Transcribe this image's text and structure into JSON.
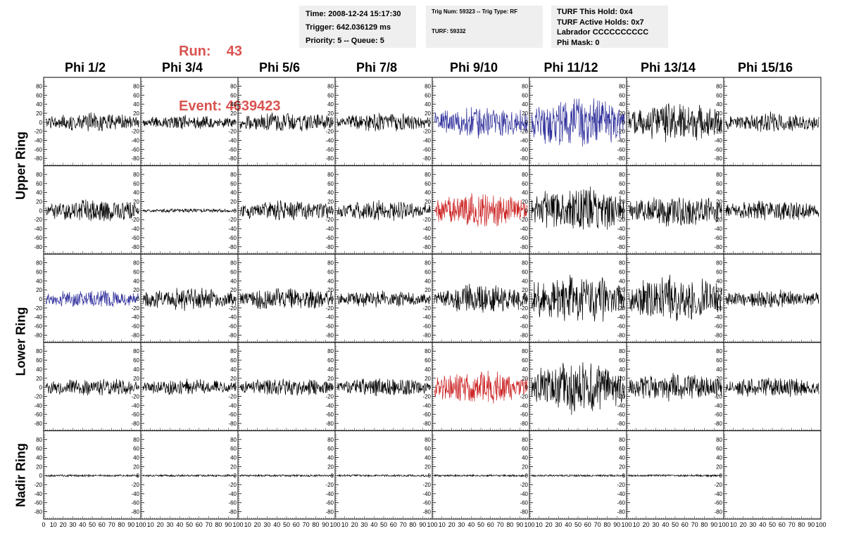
{
  "header": {
    "run_label": "Run:",
    "run_value": "43",
    "event_label": "Event:",
    "event_value": "4639423"
  },
  "info_box_1": {
    "time": "Time: 2008-12-24 15:17:30",
    "trigger": "Trigger: 642.036129 ms",
    "priority": "Priority: 5 -- Queue: 5"
  },
  "info_box_2": {
    "trig": "Trig Num: 59323 -- Trig Type: RF",
    "turf": "TURF: 59332"
  },
  "info_box_3": {
    "this_hold": "TURF This Hold: 0x4",
    "active_holds": "TURF Active Holds: 0x7",
    "labrador": "Labrador CCCCCCCCCC",
    "phi_mask": "Phi Mask: 0"
  },
  "columns": [
    "Phi 1/2",
    "Phi 3/4",
    "Phi 5/6",
    "Phi 7/8",
    "Phi 9/10",
    "Phi 11/12",
    "Phi 13/14",
    "Phi 15/16"
  ],
  "ring_labels": {
    "upper": "Upper Ring",
    "lower": "Lower Ring",
    "nadir": "Nadir Ring"
  },
  "colors": {
    "normal": "#000000",
    "triggered_blue": "#2b2b9a",
    "triggered_red": "#cc2222",
    "header_red": "#d9534f",
    "info_bg": "#efefef"
  },
  "chart_data": {
    "type": "line",
    "description_grid": "5 rows x 8 columns of waveform panels",
    "rows": [
      "Upper Ring",
      "Upper Ring",
      "Lower Ring",
      "Lower Ring",
      "Nadir Ring"
    ],
    "ylim": [
      -90,
      90
    ],
    "xlim": [
      0,
      100
    ],
    "y_ticks": [
      -80,
      -60,
      -40,
      -20,
      0,
      20,
      40,
      60,
      80
    ],
    "x_ticks": [
      0,
      10,
      20,
      30,
      40,
      50,
      60,
      70,
      80,
      90,
      100
    ],
    "panels": [
      [
        {
          "amp": 18,
          "color": "normal"
        },
        {
          "amp": 14,
          "color": "normal"
        },
        {
          "amp": 20,
          "color": "normal"
        },
        {
          "amp": 18,
          "color": "normal"
        },
        {
          "amp": 30,
          "color": "triggered_blue"
        },
        {
          "amp": 50,
          "color": "triggered_blue"
        },
        {
          "amp": 38,
          "color": "normal"
        },
        {
          "amp": 20,
          "color": "normal"
        }
      ],
      [
        {
          "amp": 22,
          "color": "normal"
        },
        {
          "amp": 4,
          "color": "normal"
        },
        {
          "amp": 20,
          "color": "normal"
        },
        {
          "amp": 20,
          "color": "normal"
        },
        {
          "amp": 35,
          "color": "triggered_red"
        },
        {
          "amp": 45,
          "color": "normal"
        },
        {
          "amp": 30,
          "color": "normal"
        },
        {
          "amp": 20,
          "color": "normal"
        }
      ],
      [
        {
          "amp": 18,
          "color": "triggered_blue"
        },
        {
          "amp": 22,
          "color": "normal"
        },
        {
          "amp": 22,
          "color": "normal"
        },
        {
          "amp": 16,
          "color": "normal"
        },
        {
          "amp": 28,
          "color": "normal"
        },
        {
          "amp": 48,
          "color": "normal"
        },
        {
          "amp": 45,
          "color": "normal"
        },
        {
          "amp": 18,
          "color": "normal"
        }
      ],
      [
        {
          "amp": 18,
          "color": "normal"
        },
        {
          "amp": 16,
          "color": "normal"
        },
        {
          "amp": 18,
          "color": "normal"
        },
        {
          "amp": 18,
          "color": "normal"
        },
        {
          "amp": 32,
          "color": "triggered_red"
        },
        {
          "amp": 50,
          "color": "normal"
        },
        {
          "amp": 28,
          "color": "normal"
        },
        {
          "amp": 20,
          "color": "normal"
        }
      ],
      [
        {
          "amp": 2,
          "color": "normal"
        },
        {
          "amp": 2,
          "color": "normal"
        },
        {
          "amp": 2,
          "color": "normal"
        },
        {
          "amp": 2,
          "color": "normal"
        },
        {
          "amp": 2,
          "color": "normal"
        },
        {
          "amp": 2,
          "color": "normal"
        },
        {
          "amp": 2,
          "color": "normal"
        },
        {
          "amp": null,
          "color": "normal"
        }
      ]
    ]
  }
}
